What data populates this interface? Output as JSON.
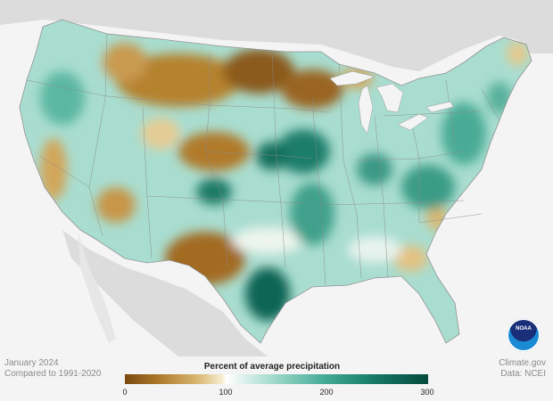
{
  "date_line": "January 2024",
  "baseline_line": "Compared to 1991-2020",
  "legend": {
    "title": "Percent of average precipitation",
    "ticks": [
      "0",
      "100",
      "200",
      "300"
    ],
    "colors": [
      "#7a4a10",
      "#d9b771",
      "#ffffff",
      "#8fd2c2",
      "#177a67",
      "#064a3d"
    ]
  },
  "credit": {
    "source": "Climate.gov",
    "data": "Data: NCEI"
  },
  "logo_text": "NOAA",
  "map_colors": {
    "ocean": "#f4f4f4",
    "land_outside": "#dcdcdc",
    "base_land": "#a9ddd0",
    "dry": "#a9712a",
    "wet": "#0e6a58"
  }
}
